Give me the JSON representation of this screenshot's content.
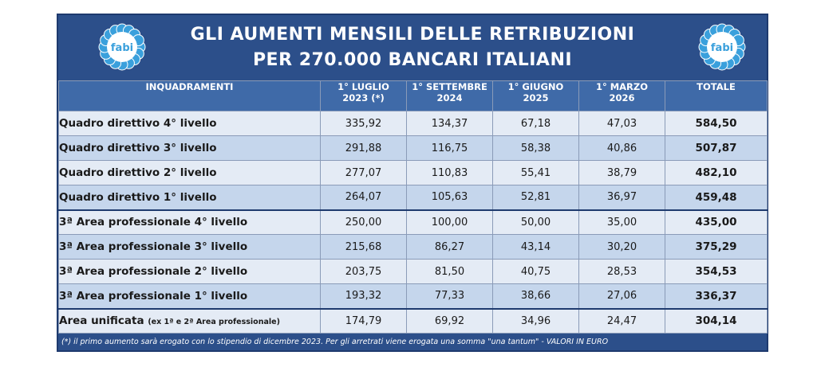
{
  "header": {
    "title_line1": "GLI AUMENTI MENSILI DELLE RETRIBUZIONI",
    "title_line2": "PER 270.000 BANCARI ITALIANI",
    "logo_text": "fabi"
  },
  "table": {
    "columns": [
      "INQUADRAMENTI",
      "1° LUGLIO\n2023 (*)",
      "1° SETTEMBRE\n2024",
      "1° GIUGNO\n2025",
      "1° MARZO\n2026",
      "TOTALE"
    ],
    "rows": [
      {
        "label": "Quadro direttivo 4° livello",
        "v1": "335,92",
        "v2": "134,37",
        "v3": "67,18",
        "v4": "47,03",
        "total": "584,50"
      },
      {
        "label": "Quadro direttivo 3° livello",
        "v1": "291,88",
        "v2": "116,75",
        "v3": "58,38",
        "v4": "40,86",
        "total": "507,87"
      },
      {
        "label": "Quadro direttivo 2° livello",
        "v1": "277,07",
        "v2": "110,83",
        "v3": "55,41",
        "v4": "38,79",
        "total": "482,10"
      },
      {
        "label": "Quadro direttivo 1° livello",
        "v1": "264,07",
        "v2": "105,63",
        "v3": "52,81",
        "v4": "36,97",
        "total": "459,48"
      },
      {
        "label": "3ª Area professionale 4° livello",
        "v1": "250,00",
        "v2": "100,00",
        "v3": "50,00",
        "v4": "35,00",
        "total": "435,00"
      },
      {
        "label": "3ª Area professionale 3° livello",
        "v1": "215,68",
        "v2": "86,27",
        "v3": "43,14",
        "v4": "30,20",
        "total": "375,29"
      },
      {
        "label": "3ª Area professionale 2° livello",
        "v1": "203,75",
        "v2": "81,50",
        "v3": "40,75",
        "v4": "28,53",
        "total": "354,53"
      },
      {
        "label": "3ª Area professionale 1° livello",
        "v1": "193,32",
        "v2": "77,33",
        "v3": "38,66",
        "v4": "27,06",
        "total": "336,37"
      },
      {
        "label": "Area unificata",
        "label_sub": "(ex 1ª e 2ª Area professionale)",
        "v1": "174,79",
        "v2": "69,92",
        "v3": "34,96",
        "v4": "24,47",
        "total": "304,14"
      }
    ]
  },
  "footnote": "(*) il primo aumento sarà erogato con lo stipendio di dicembre 2023. Per gli arretrati viene erogata una somma \"una tantum\" - VALORI IN EURO",
  "colors": {
    "header_bg": "#2c4f8a",
    "column_header_bg": "#3f6aa8",
    "row_light": "#e4ebf5",
    "row_dark": "#c5d6ec",
    "logo_petal": "#3aa0dc"
  }
}
